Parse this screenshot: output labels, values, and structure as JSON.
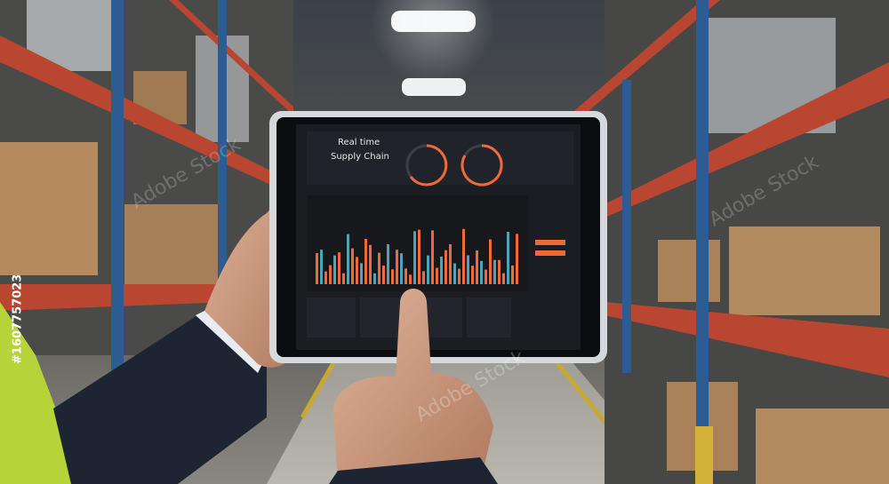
{
  "tablet": {
    "title_line1": "Real time",
    "title_line2": "Supply Chain"
  },
  "watermark": {
    "brand": "Adobe Stock",
    "id": "#1607757023"
  }
}
